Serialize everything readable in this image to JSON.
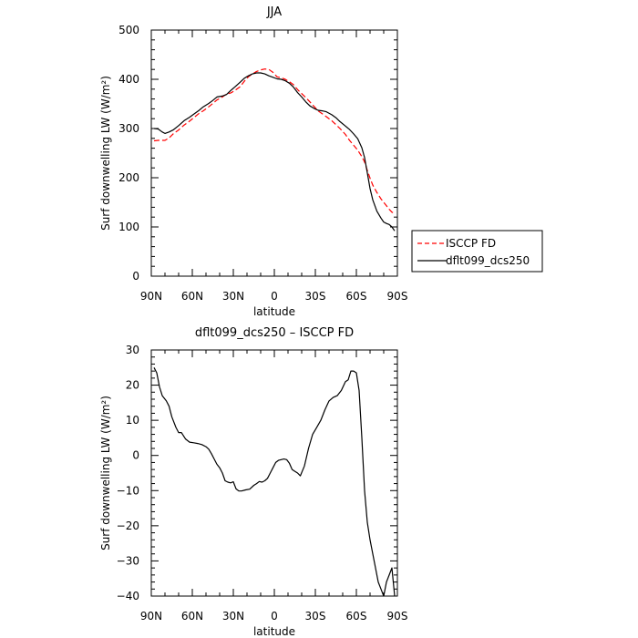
{
  "chart_data": [
    {
      "type": "line",
      "title": "JJA",
      "xlabel": "latitude",
      "ylabel": "Surf downwelling LW (W/m²)",
      "xlim": [
        90,
        -90
      ],
      "ylim": [
        0,
        500
      ],
      "x_ticks": [
        90,
        60,
        30,
        0,
        -30,
        -60,
        -90
      ],
      "x_tick_labels": [
        "90N",
        "60N",
        "30N",
        "0",
        "30S",
        "60S",
        "90S"
      ],
      "y_ticks": [
        0,
        100,
        200,
        300,
        400,
        500
      ],
      "y_tick_labels": [
        "0",
        "100",
        "200",
        "300",
        "400",
        "500"
      ],
      "legend_placement": "right",
      "grid": false,
      "series": [
        {
          "name": "ISCCP FD",
          "color": "#ff0000",
          "dash": "dashed",
          "x": [
            88,
            85,
            82,
            80,
            77,
            74,
            70,
            66,
            62,
            58,
            55,
            52,
            48,
            45,
            42,
            38,
            35,
            32,
            29,
            25,
            22,
            19,
            16,
            13,
            10,
            7,
            4,
            1,
            -2,
            -5,
            -8,
            -11,
            -14,
            -17,
            -20,
            -23,
            -26,
            -29,
            -32,
            -35,
            -38,
            -42,
            -45,
            -48,
            -52,
            -55,
            -58,
            -61,
            -64,
            -66,
            -68,
            -70,
            -72,
            -75,
            -78,
            -80,
            -82,
            -84,
            -86,
            -88
          ],
          "values": [
            275,
            276,
            276,
            276,
            281,
            289,
            297,
            307,
            315,
            324,
            331,
            336,
            344,
            351,
            358,
            364,
            370,
            372,
            377,
            385,
            396,
            405,
            411,
            416,
            419,
            421,
            420,
            414,
            405,
            403,
            400,
            395,
            389,
            379,
            371,
            363,
            354,
            345,
            336,
            330,
            324,
            316,
            308,
            300,
            288,
            276,
            266,
            256,
            243,
            232,
            215,
            199,
            185,
            170,
            157,
            150,
            143,
            136,
            130,
            127
          ]
        },
        {
          "name": "dflt099_dcs250",
          "color": "#000000",
          "dash": "solid",
          "x": [
            88,
            85,
            82,
            80,
            77,
            74,
            70,
            66,
            62,
            58,
            55,
            52,
            48,
            45,
            42,
            38,
            35,
            32,
            29,
            25,
            22,
            19,
            16,
            13,
            10,
            7,
            4,
            1,
            -2,
            -5,
            -8,
            -11,
            -14,
            -17,
            -20,
            -23,
            -26,
            -29,
            -32,
            -35,
            -38,
            -42,
            -45,
            -48,
            -52,
            -55,
            -58,
            -61,
            -64,
            -66,
            -68,
            -70,
            -72,
            -75,
            -78,
            -80,
            -82,
            -84,
            -86,
            -88
          ],
          "values": [
            300,
            299,
            293,
            290,
            293,
            297,
            306,
            316,
            323,
            331,
            337,
            344,
            351,
            357,
            364,
            366,
            369,
            377,
            384,
            394,
            402,
            407,
            411,
            413,
            413,
            411,
            407,
            404,
            401,
            400,
            397,
            392,
            384,
            373,
            364,
            354,
            346,
            341,
            337,
            336,
            334,
            328,
            322,
            314,
            305,
            298,
            289,
            279,
            261,
            241,
            210,
            178,
            155,
            132,
            118,
            110,
            107,
            105,
            100,
            92
          ]
        }
      ]
    },
    {
      "type": "line",
      "title": "dflt099_dcs250 – ISCCP FD",
      "xlabel": "latitude",
      "ylabel": "Surf downwelling LW (W/m²)",
      "xlim": [
        90,
        -90
      ],
      "ylim": [
        -40,
        30
      ],
      "x_ticks": [
        90,
        60,
        30,
        0,
        -30,
        -60,
        -90
      ],
      "x_tick_labels": [
        "90N",
        "60N",
        "30N",
        "0",
        "30S",
        "60S",
        "90S"
      ],
      "y_ticks": [
        -40,
        -30,
        -20,
        -10,
        0,
        10,
        20,
        30
      ],
      "y_tick_labels": [
        "−40",
        "−30",
        "−20",
        "−10",
        "0",
        "10",
        "20",
        "30"
      ],
      "grid": false,
      "series": [
        {
          "color": "#000000",
          "dash": "solid",
          "x": [
            88,
            86,
            84,
            82,
            79,
            77,
            75,
            72,
            70,
            68,
            65,
            62,
            59,
            56,
            53,
            50,
            48,
            46,
            44,
            42,
            40,
            38,
            36,
            34,
            32,
            30,
            28,
            26,
            24,
            21,
            18,
            15,
            13,
            11,
            9,
            7,
            5,
            3,
            1,
            -1,
            -3,
            -5,
            -7,
            -9,
            -11,
            -13,
            -15,
            -17,
            -19,
            -22,
            -25,
            -28,
            -31,
            -34,
            -37,
            -40,
            -43,
            -46,
            -49,
            -52,
            -54,
            -56,
            -58,
            -60,
            -62,
            -64,
            -66,
            -68,
            -70,
            -72,
            -74,
            -76,
            -78,
            -80,
            -82,
            -84,
            -86,
            -88
          ],
          "values": [
            25,
            23.5,
            19.5,
            17,
            15.5,
            14,
            11,
            8,
            6.5,
            6.5,
            4.7,
            3.8,
            3.6,
            3.4,
            3.1,
            2.5,
            1.8,
            0.5,
            -1,
            -2.5,
            -3.5,
            -5,
            -7.2,
            -7.6,
            -7.8,
            -7.5,
            -9.5,
            -10.1,
            -10.1,
            -9.8,
            -9.6,
            -8.5,
            -8,
            -7.4,
            -7.6,
            -7.2,
            -6.5,
            -5,
            -3.5,
            -2,
            -1.4,
            -1.2,
            -1.0,
            -1.2,
            -2.2,
            -4,
            -4.5,
            -5,
            -5.8,
            -3,
            2,
            6,
            8,
            10,
            13,
            15.5,
            16.5,
            17,
            18.5,
            21,
            21.5,
            24,
            24,
            23.5,
            18.5,
            5,
            -10,
            -19,
            -24,
            -28,
            -32,
            -36,
            -38,
            -40,
            -36,
            -34,
            -32,
            -40
          ]
        }
      ]
    }
  ]
}
